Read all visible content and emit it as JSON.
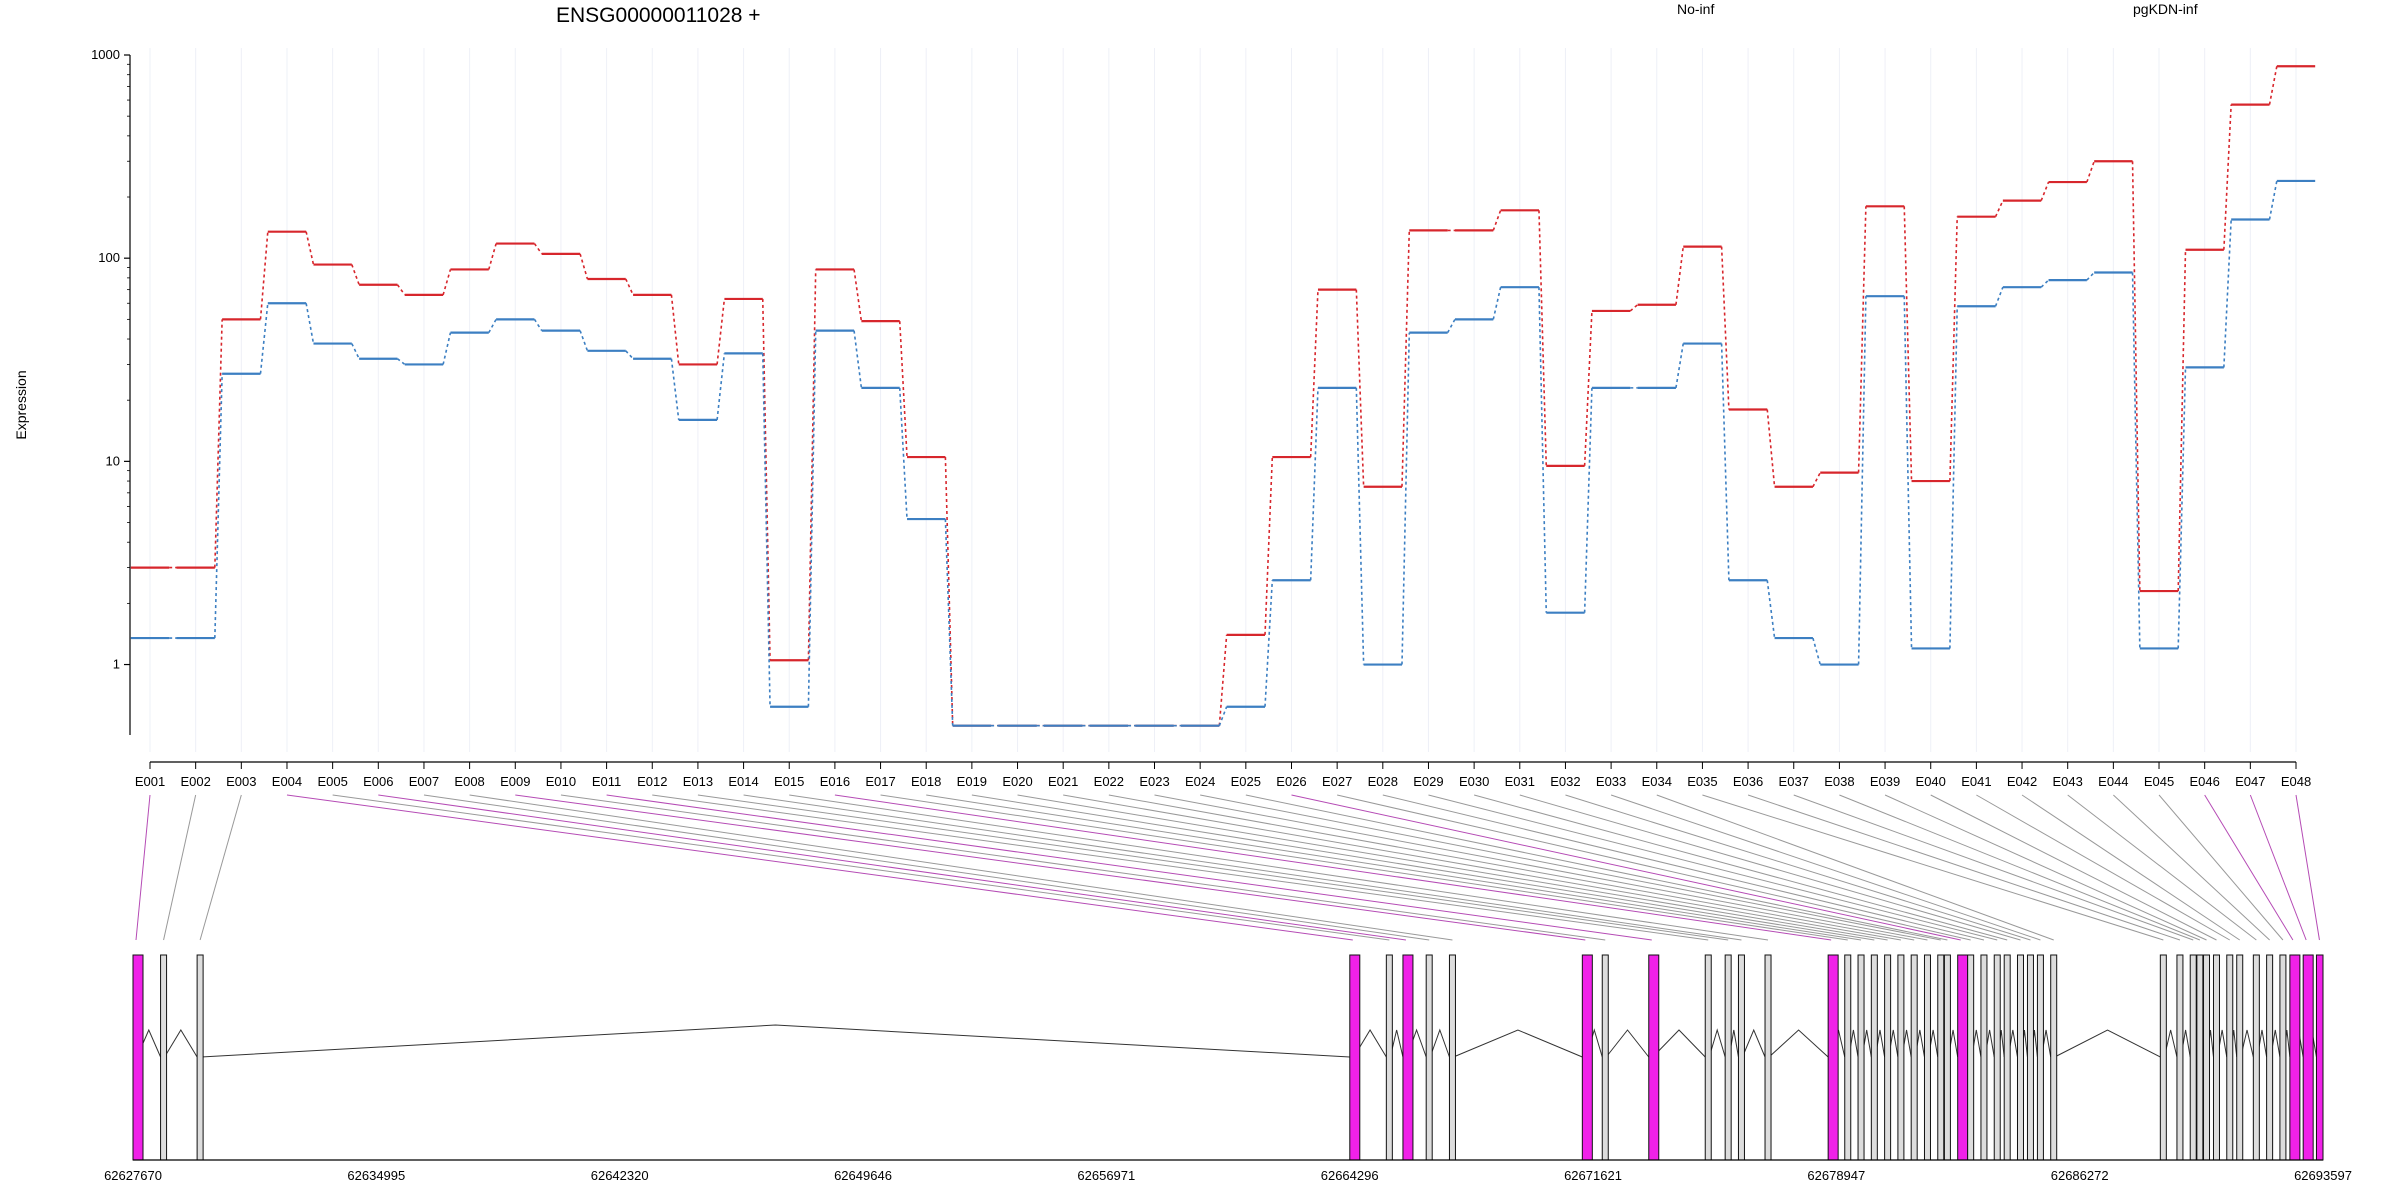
{
  "chart_data": {
    "type": "line",
    "title": "ENSG00000011028 +",
    "ylabel": "Expression",
    "y_scale": "log",
    "ylim": [
      0.45,
      1000
    ],
    "y_ticks": [
      1,
      10,
      100,
      1000
    ],
    "y_tick_labels": [
      "1",
      "10",
      "100",
      "1000"
    ],
    "categories": [
      "E001",
      "E002",
      "E003",
      "E004",
      "E005",
      "E006",
      "E007",
      "E008",
      "E009",
      "E010",
      "E011",
      "E012",
      "E013",
      "E014",
      "E015",
      "E016",
      "E017",
      "E018",
      "E019",
      "E020",
      "E021",
      "E022",
      "E023",
      "E024",
      "E025",
      "E026",
      "E027",
      "E028",
      "E029",
      "E030",
      "E031",
      "E032",
      "E033",
      "E034",
      "E035",
      "E036",
      "E037",
      "E038",
      "E039",
      "E040",
      "E041",
      "E042",
      "E043",
      "E044",
      "E045",
      "E046",
      "E047",
      "E048"
    ],
    "series": [
      {
        "name": "No-inf",
        "color": "#d7262c",
        "values": [
          3,
          3,
          50,
          135,
          93,
          74,
          66,
          88,
          118,
          105,
          79,
          66,
          30,
          63,
          1.05,
          88,
          49,
          10.5,
          0.5,
          0.5,
          0.5,
          0.5,
          0.5,
          0.5,
          1.4,
          10.5,
          70,
          7.5,
          137,
          137,
          172,
          9.5,
          55,
          59,
          114,
          18,
          7.5,
          8.8,
          180,
          8,
          160,
          192,
          237,
          300,
          2.3,
          110,
          570,
          880
        ]
      },
      {
        "name": "pgKDN-inf",
        "color": "#3c7fc2",
        "values": [
          1.35,
          1.35,
          27,
          60,
          38,
          32,
          30,
          43,
          50,
          44,
          35,
          32,
          16,
          34,
          0.62,
          44,
          23,
          5.2,
          0.5,
          0.5,
          0.5,
          0.5,
          0.5,
          0.5,
          0.62,
          2.6,
          23,
          1,
          43,
          50,
          72,
          1.8,
          23,
          23,
          38,
          2.6,
          1.35,
          1,
          65,
          1.2,
          58,
          72,
          78,
          85,
          1.2,
          29,
          155,
          240
        ]
      }
    ],
    "legend_placement": "top",
    "genomic_axis": {
      "min": 62627670,
      "max": 62693597,
      "tick_labels": [
        "62627670",
        "62634995",
        "62642320",
        "62649646",
        "62656971",
        "62664296",
        "62671621",
        "62678947",
        "62686272",
        "62693597"
      ]
    },
    "exon_coordinates": [
      62627670,
      62628500,
      62629600,
      62664300,
      62665400,
      62665900,
      62666600,
      62667300,
      62671300,
      62671900,
      62673300,
      62675000,
      62675600,
      62676000,
      62676800,
      62678700,
      62679200,
      62679600,
      62680000,
      62680400,
      62680800,
      62681200,
      62681600,
      62682000,
      62682200,
      62682600,
      62682900,
      62683300,
      62683700,
      62684000,
      62684400,
      62684700,
      62685000,
      62685400,
      62688700,
      62689200,
      62689600,
      62689800,
      62690000,
      62690300,
      62690700,
      62691000,
      62691500,
      62691900,
      62692300,
      62692600,
      62693000,
      62693400
    ],
    "highlighted_exons": [
      "E001",
      "E004",
      "E006",
      "E009",
      "E011",
      "E016",
      "E026",
      "E046",
      "E047",
      "E048"
    ],
    "colors": {
      "highlight": "#f021e8",
      "exon_fill": "#dddddd",
      "connector_gray": "#999999",
      "connector_pink": "#b54bb5",
      "grid": "#eef0f7"
    }
  }
}
